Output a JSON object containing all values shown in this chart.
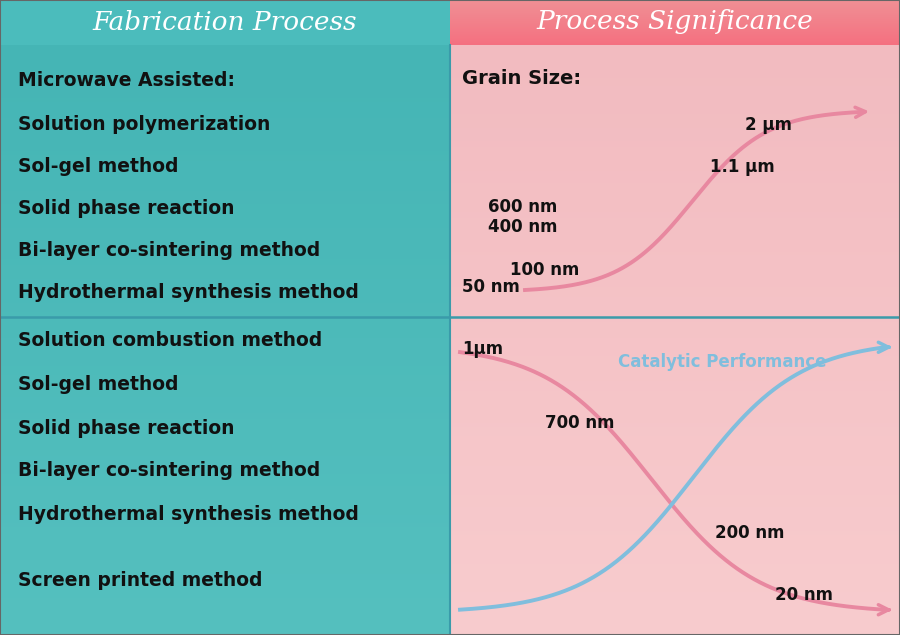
{
  "title_left": "Fabrication Process",
  "title_right": "Process Significance",
  "header_left_color": "#4BBCBC",
  "header_right_color": "#F07585",
  "bg_left_color": "#4BBCBC",
  "bg_right_color": "#F5C5C8",
  "divider_color": "#4499AA",
  "top_left_items": [
    "Microwave Assisted:",
    "Solution polymerization",
    "Sol-gel method",
    "Solid phase reaction",
    "Bi-layer co-sintering method",
    "Hydrothermal synthesis method"
  ],
  "bottom_left_items": [
    "Solution combustion method",
    "Sol-gel method",
    "Solid phase reaction",
    "Bi-layer co-sintering method",
    "Hydrothermal synthesis method",
    "Screen printed method"
  ],
  "grain_size_label": "Grain Size:",
  "top_curve_labels": [
    "50 nm",
    "100 nm",
    "400 nm",
    "600 nm",
    "1.1 μm",
    "2 μm"
  ],
  "bottom_left_label": "1μm",
  "bottom_curve_labels": [
    "700 nm",
    "200 nm",
    "20 nm"
  ],
  "catalytic_label": "Catalytic Performance",
  "curve_red_color": "#E888A0",
  "curve_blue_color": "#80BEDD",
  "text_color": "#111111",
  "header_text_color": "#FFFFFF"
}
